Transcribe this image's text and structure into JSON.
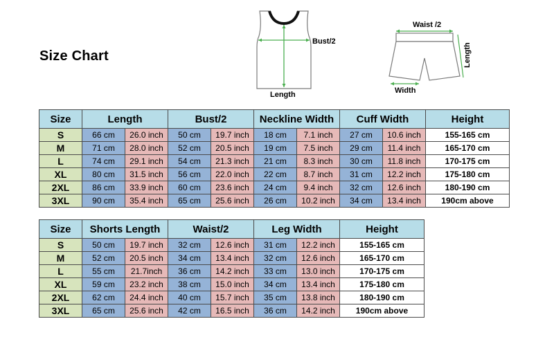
{
  "title": "Size Chart",
  "diagram": {
    "top_bust": "Bust/2",
    "top_length": "Length",
    "shorts_waist": "Waist /2",
    "shorts_length": "Length",
    "shorts_width": "Width"
  },
  "top_table": {
    "headers": [
      "Size",
      "Length",
      "Bust/2",
      "Neckline Width",
      "Cuff Width",
      "Height"
    ],
    "rows": [
      [
        "S",
        "66 cm",
        "26.0 inch",
        "50 cm",
        "19.7 inch",
        "18 cm",
        "7.1 inch",
        "27 cm",
        "10.6 inch",
        "155-165 cm"
      ],
      [
        "M",
        "71 cm",
        "28.0 inch",
        "52 cm",
        "20.5 inch",
        "19 cm",
        "7.5 inch",
        "29 cm",
        "11.4 inch",
        "165-170 cm"
      ],
      [
        "L",
        "74 cm",
        "29.1 inch",
        "54 cm",
        "21.3 inch",
        "21 cm",
        "8.3 inch",
        "30 cm",
        "11.8 inch",
        "170-175 cm"
      ],
      [
        "XL",
        "80 cm",
        "31.5 inch",
        "56 cm",
        "22.0 inch",
        "22 cm",
        "8.7 inch",
        "31 cm",
        "12.2 inch",
        "175-180 cm"
      ],
      [
        "2XL",
        "86 cm",
        "33.9 inch",
        "60 cm",
        "23.6 inch",
        "24 cm",
        "9.4 inch",
        "32 cm",
        "12.6 inch",
        "180-190 cm"
      ],
      [
        "3XL",
        "90 cm",
        "35.4 inch",
        "65 cm",
        "25.6 inch",
        "26 cm",
        "10.2 inch",
        "34 cm",
        "13.4 inch",
        "190cm above"
      ]
    ]
  },
  "shorts_table": {
    "headers": [
      "Size",
      "Shorts Length",
      "Waist/2",
      "Leg Width",
      "Height"
    ],
    "rows": [
      [
        "S",
        "50 cm",
        "19.7 inch",
        "32 cm",
        "12.6 inch",
        "31 cm",
        "12.2 inch",
        "155-165 cm"
      ],
      [
        "M",
        "52 cm",
        "20.5 inch",
        "34 cm",
        "13.4 inch",
        "32 cm",
        "12.6 inch",
        "165-170 cm"
      ],
      [
        "L",
        "55 cm",
        "21.7inch",
        "36 cm",
        "14.2 inch",
        "33 cm",
        "13.0 inch",
        "170-175 cm"
      ],
      [
        "XL",
        "59 cm",
        "23.2 inch",
        "38 cm",
        "15.0 inch",
        "34 cm",
        "13.4 inch",
        "175-180 cm"
      ],
      [
        "2XL",
        "62 cm",
        "24.4 inch",
        "40 cm",
        "15.7 inch",
        "35 cm",
        "13.8 inch",
        "180-190 cm"
      ],
      [
        "3XL",
        "65 cm",
        "25.6 inch",
        "42 cm",
        "16.5 inch",
        "36 cm",
        "14.2 inch",
        "190cm above"
      ]
    ]
  },
  "colors": {
    "header": "#b7dde8",
    "size_cell": "#d7e4bd",
    "cm_cell": "#95b3d7",
    "inch_cell": "#e6b9b8",
    "measure_arrow": "#4caf50"
  }
}
